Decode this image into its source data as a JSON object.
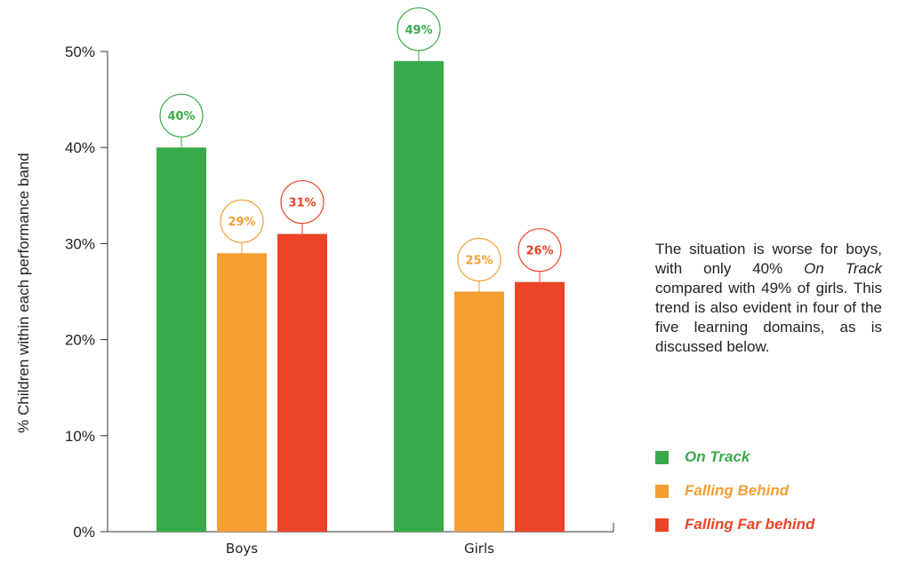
{
  "chart_data": {
    "type": "bar",
    "categories": [
      "Boys",
      "Girls"
    ],
    "series": [
      {
        "name": "On Track",
        "color": "#38aa49",
        "values": [
          40,
          49
        ]
      },
      {
        "name": "Falling Behind",
        "color": "#f59f33",
        "values": [
          29,
          25
        ]
      },
      {
        "name": "Falling Far behind",
        "color": "#ec4427",
        "values": [
          31,
          26
        ]
      }
    ],
    "data_labels": [
      [
        "40%",
        "49%"
      ],
      [
        "29%",
        "25%"
      ],
      [
        "31%",
        "26%"
      ]
    ],
    "ylabel": "% Children within each performance band",
    "ylim": [
      0,
      50
    ],
    "yticks": [
      "0%",
      "10%",
      "20%",
      "30%",
      "40%",
      "50%"
    ],
    "grid": false,
    "legend_position": "bottom-right"
  },
  "note": {
    "pre": "The situation is worse for boys, with only 40% ",
    "em1": "On Track",
    "mid": " compared with 49% of girls. This trend is also evident in four of the five learning domains, as is discussed below."
  },
  "legend": [
    {
      "label": "On Track",
      "color": "#38aa49"
    },
    {
      "label": "Falling Behind",
      "color": "#f59f33"
    },
    {
      "label": "Falling Far behind",
      "color": "#ec4427"
    }
  ]
}
